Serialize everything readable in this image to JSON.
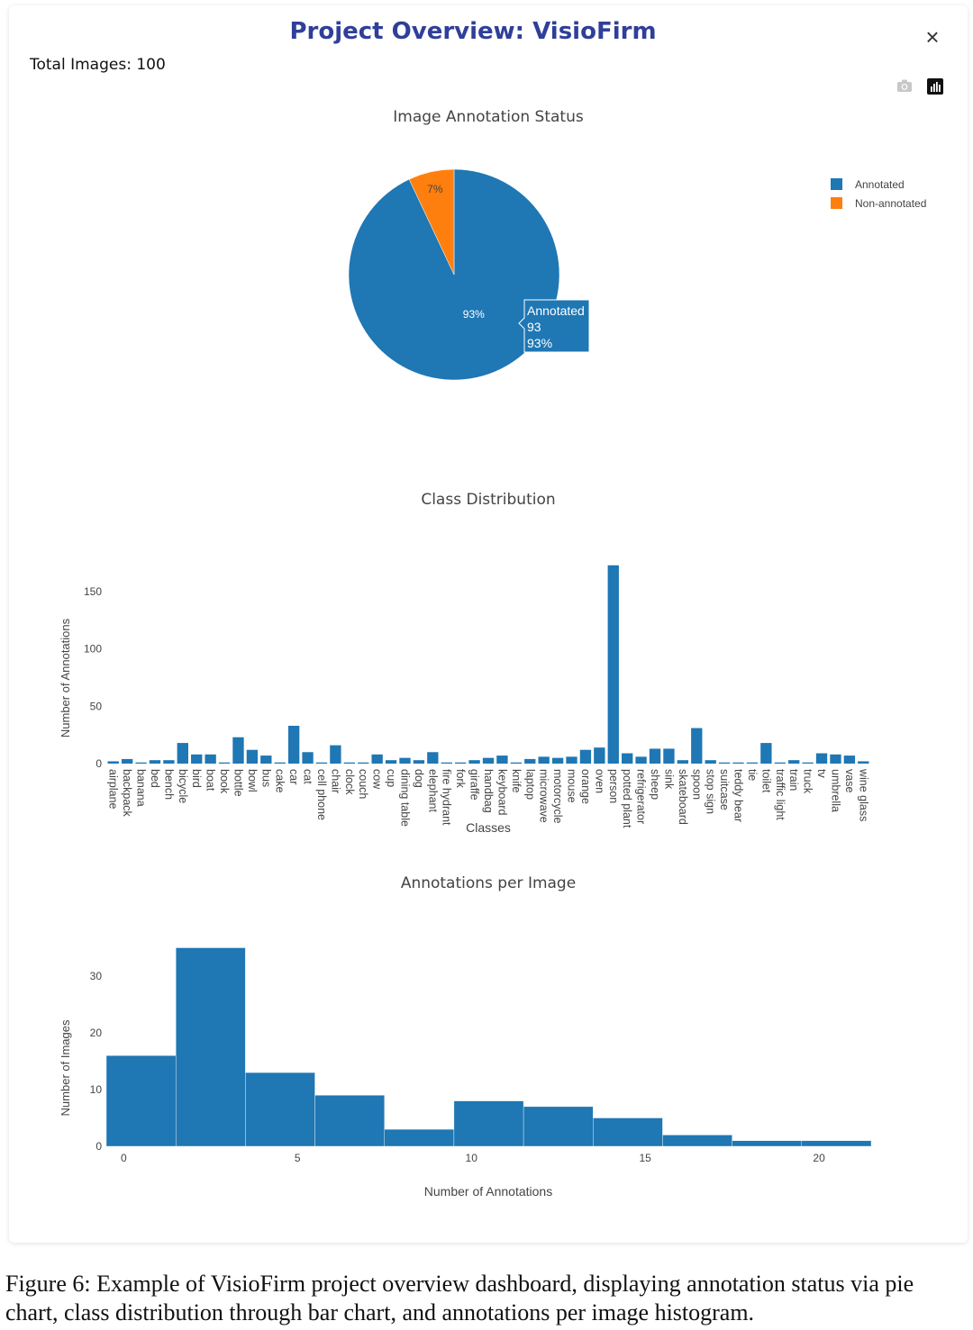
{
  "header": {
    "title": "Project Overview: VisioFirm",
    "close_label": "×",
    "total_images": "Total Images: 100"
  },
  "toolbar": {
    "icons": [
      "camera-icon",
      "plotly-logo-icon"
    ]
  },
  "colors": {
    "primary": "#1f77b4",
    "secondary": "#ff7f0e",
    "title": "#2f3f99"
  },
  "chart_data": [
    {
      "type": "pie",
      "title": "Image Annotation Status",
      "labels": [
        "Annotated",
        "Non-annotated"
      ],
      "values": [
        93,
        7
      ],
      "text": [
        "93%",
        "7%"
      ],
      "legend_position": "top-right",
      "hover": {
        "label": "Annotated",
        "value": "93",
        "percent": "93%"
      }
    },
    {
      "type": "bar",
      "title": "Class Distribution",
      "xlabel": "Classes",
      "ylabel": "Number of Annotations",
      "ylim": [
        0,
        175
      ],
      "yticks": [
        0,
        50,
        100,
        150
      ],
      "categories": [
        "airplane",
        "backpack",
        "banana",
        "bed",
        "bench",
        "bicycle",
        "bird",
        "boat",
        "book",
        "bottle",
        "bowl",
        "bus",
        "cake",
        "car",
        "cat",
        "cell phone",
        "chair",
        "clock",
        "couch",
        "cow",
        "cup",
        "dining table",
        "dog",
        "elephant",
        "fire hydrant",
        "fork",
        "giraffe",
        "handbag",
        "keyboard",
        "knife",
        "laptop",
        "microwave",
        "motorcycle",
        "mouse",
        "orange",
        "oven",
        "person",
        "potted plant",
        "refrigerator",
        "sheep",
        "sink",
        "skateboard",
        "spoon",
        "stop sign",
        "suitcase",
        "teddy bear",
        "tie",
        "toilet",
        "traffic light",
        "train",
        "truck",
        "tv",
        "umbrella",
        "vase",
        "wine glass"
      ],
      "values": [
        2,
        4,
        1,
        3,
        3,
        18,
        8,
        8,
        1,
        23,
        12,
        7,
        1,
        33,
        10,
        1,
        16,
        1,
        1,
        8,
        3,
        5,
        3,
        10,
        1,
        1,
        3,
        5,
        7,
        1,
        4,
        6,
        5,
        6,
        12,
        14,
        173,
        9,
        6,
        13,
        13,
        3,
        31,
        3,
        1,
        1,
        1,
        18,
        1,
        3,
        1,
        9,
        8,
        7,
        2
      ]
    },
    {
      "type": "bar",
      "subtype": "histogram",
      "title": "Annotations per Image",
      "xlabel": "Number of Annotations",
      "ylabel": "Number of Images",
      "xlim": [
        -0.5,
        21.5
      ],
      "ylim": [
        0,
        35
      ],
      "xticks": [
        0,
        5,
        10,
        15,
        20
      ],
      "yticks": [
        0,
        10,
        20,
        30
      ],
      "bin_width": 2,
      "bin_starts": [
        -0.5,
        1.5,
        3.5,
        5.5,
        7.5,
        9.5,
        11.5,
        13.5,
        15.5,
        17.5,
        19.5
      ],
      "values": [
        16,
        35,
        13,
        9,
        3,
        8,
        7,
        5,
        2,
        1,
        1
      ]
    }
  ],
  "caption": {
    "text": "Figure 6: Example of VisioFirm project overview dashboard, displaying annotation status via pie chart, class distribution through bar chart, and annotations per image histogram."
  }
}
